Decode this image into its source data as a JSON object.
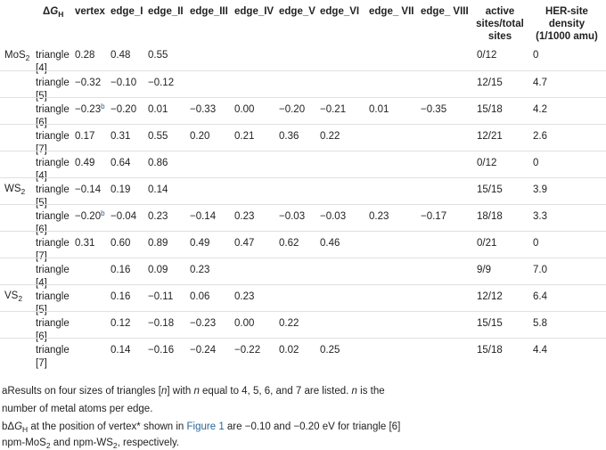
{
  "header": {
    "dgh_delta": "Δ",
    "dgh_g": "G",
    "dgh_sub": "H",
    "vertex": "vertex",
    "edge_i": "edge_I",
    "edge_ii": "edge_II",
    "edge_iii": "edge_III",
    "edge_iv": "edge_IV",
    "edge_v": "edge_V",
    "edge_vi": "edge_VI",
    "edge_vii": "edge_ VII",
    "edge_viii": "edge_ VIII",
    "active_line1": "active",
    "active_line2": "sites/total",
    "active_line3": "sites",
    "her_line1": "HER-site",
    "her_line2": "density",
    "her_line3": "(1/1000 amu)"
  },
  "groups": {
    "mos2": {
      "base": "MoS",
      "sub": "2"
    },
    "ws2": {
      "base": "WS",
      "sub": "2"
    },
    "vs2": {
      "base": "VS",
      "sub": "2"
    }
  },
  "rows": [
    {
      "type": "triangle",
      "size": "[4]",
      "vertex": "0.28",
      "vertex_sup": "",
      "e1": "0.48",
      "e2": "0.55",
      "e3": "",
      "e4": "",
      "e5": "",
      "e6": "",
      "e7": "",
      "e8": "",
      "active": "0/12",
      "her": "0"
    },
    {
      "type": "triangle",
      "size": "[5]",
      "vertex": "−0.32",
      "vertex_sup": "",
      "e1": "−0.10",
      "e2": "−0.12",
      "e3": "",
      "e4": "",
      "e5": "",
      "e6": "",
      "e7": "",
      "e8": "",
      "active": "12/15",
      "her": "4.7"
    },
    {
      "type": "triangle",
      "size": "[6]",
      "vertex": "−0.23",
      "vertex_sup": "b",
      "e1": "−0.20",
      "e2": "0.01",
      "e3": "−0.33",
      "e4": "0.00",
      "e5": "−0.20",
      "e6": "−0.21",
      "e7": "0.01",
      "e8": "−0.35",
      "active": "15/18",
      "her": "4.2"
    },
    {
      "type": "triangle",
      "size": "[7]",
      "vertex": "0.17",
      "vertex_sup": "",
      "e1": "0.31",
      "e2": "0.55",
      "e3": "0.20",
      "e4": "0.21",
      "e5": "0.36",
      "e6": "0.22",
      "e7": "",
      "e8": "",
      "active": "12/21",
      "her": "2.6"
    },
    {
      "type": "triangle",
      "size": "[4]",
      "vertex": "0.49",
      "vertex_sup": "",
      "e1": "0.64",
      "e2": "0.86",
      "e3": "",
      "e4": "",
      "e5": "",
      "e6": "",
      "e7": "",
      "e8": "",
      "active": "0/12",
      "her": "0"
    },
    {
      "type": "triangle",
      "size": "[5]",
      "vertex": "−0.14",
      "vertex_sup": "",
      "e1": "0.19",
      "e2": "0.14",
      "e3": "",
      "e4": "",
      "e5": "",
      "e6": "",
      "e7": "",
      "e8": "",
      "active": "15/15",
      "her": "3.9"
    },
    {
      "type": "triangle",
      "size": "[6]",
      "vertex": "−0.20",
      "vertex_sup": "b",
      "e1": "−0.04",
      "e2": "0.23",
      "e3": "−0.14",
      "e4": "0.23",
      "e5": "−0.03",
      "e6": "−0.03",
      "e7": "0.23",
      "e8": "−0.17",
      "active": "18/18",
      "her": "3.3"
    },
    {
      "type": "triangle",
      "size": "[7]",
      "vertex": "0.31",
      "vertex_sup": "",
      "e1": "0.60",
      "e2": "0.89",
      "e3": "0.49",
      "e4": "0.47",
      "e5": "0.62",
      "e6": "0.46",
      "e7": "",
      "e8": "",
      "active": "0/21",
      "her": "0"
    },
    {
      "type": "triangle",
      "size": "[4]",
      "vertex": "",
      "vertex_sup": "",
      "e1": "0.16",
      "e2": "0.09",
      "e3": "0.23",
      "e4": "",
      "e5": "",
      "e6": "",
      "e7": "",
      "e8": "",
      "active": "9/9",
      "her": "7.0"
    },
    {
      "type": "triangle",
      "size": "[5]",
      "vertex": "",
      "vertex_sup": "",
      "e1": "0.16",
      "e2": "−0.11",
      "e3": "0.06",
      "e4": "0.23",
      "e5": "",
      "e6": "",
      "e7": "",
      "e8": "",
      "active": "12/12",
      "her": "6.4"
    },
    {
      "type": "triangle",
      "size": "[6]",
      "vertex": "",
      "vertex_sup": "",
      "e1": "0.12",
      "e2": "−0.18",
      "e3": "−0.23",
      "e4": "0.00",
      "e5": "0.22",
      "e6": "",
      "e7": "",
      "e8": "",
      "active": "15/15",
      "her": "5.8"
    },
    {
      "type": "triangle",
      "size": "[7]",
      "vertex": "",
      "vertex_sup": "",
      "e1": "0.14",
      "e2": "−0.16",
      "e3": "−0.24",
      "e4": "−0.22",
      "e5": "0.02",
      "e6": "0.25",
      "e7": "",
      "e8": "",
      "active": "15/18",
      "her": "4.4"
    }
  ],
  "footnotes": {
    "a_line1_pre": "aResults on four sizes of triangles [",
    "a_n1": "n",
    "a_line1_mid": "] with ",
    "a_n2": "n",
    "a_line1_post": " equal to 4, 5, 6, and 7 are listed. ",
    "a_n3": "n",
    "a_line1_end": " is the",
    "a_line2": "number of metal atoms per edge.",
    "b_pre": "bΔ",
    "b_g": "G",
    "b_sub": "H",
    "b_mid": " at the position of vertex* shown in ",
    "b_link": "Figure 1",
    "b_post": " are −0.10 and −0.20 eV for triangle [6]",
    "b_line2_a": "npm-MoS",
    "b_line2_sub1": "2",
    "b_line2_b": " and npm-WS",
    "b_line2_sub2": "2",
    "b_line2_c": ", respectively."
  }
}
